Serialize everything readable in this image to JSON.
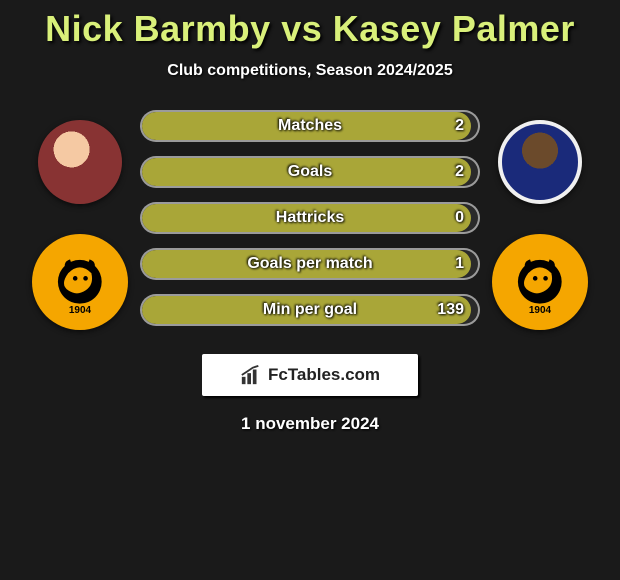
{
  "title_color": "#d9f07a",
  "title": "Nick Barmby vs Kasey Palmer",
  "subtitle": "Club competitions, Season 2024/2025",
  "bar_fill_color": "#a9a638",
  "stats": [
    {
      "label": "Matches",
      "value": "2",
      "fill_pct": 98
    },
    {
      "label": "Goals",
      "value": "2",
      "fill_pct": 98
    },
    {
      "label": "Hattricks",
      "value": "0",
      "fill_pct": 98
    },
    {
      "label": "Goals per match",
      "value": "1",
      "fill_pct": 98
    },
    {
      "label": "Min per goal",
      "value": "139",
      "fill_pct": 98
    }
  ],
  "brand": "FcTables.com",
  "date": "1 november 2024",
  "left": {
    "player": "Nick Barmby",
    "club": "Hull City"
  },
  "right": {
    "player": "Kasey Palmer",
    "club": "Hull City"
  },
  "crest_bg": "#f5a600"
}
